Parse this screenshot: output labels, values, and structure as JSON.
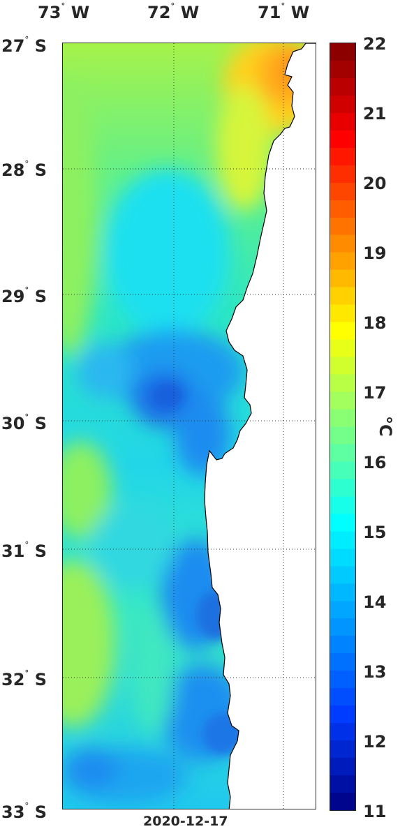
{
  "map": {
    "lon_labels": [
      {
        "deg": "73",
        "sym": "°",
        "dir": "W"
      },
      {
        "deg": "72",
        "sym": "°",
        "dir": "W"
      },
      {
        "deg": "71",
        "sym": "°",
        "dir": "W"
      }
    ],
    "lat_labels": [
      {
        "deg": "27",
        "sym": "°",
        "dir": "S"
      },
      {
        "deg": "28",
        "sym": "°",
        "dir": "S"
      },
      {
        "deg": "29",
        "sym": "°",
        "dir": "S"
      },
      {
        "deg": "30",
        "sym": "°",
        "dir": "S"
      },
      {
        "deg": "31",
        "sym": "°",
        "dir": "S"
      },
      {
        "deg": "32",
        "sym": "°",
        "dir": "S"
      },
      {
        "deg": "33",
        "sym": "°",
        "dir": "S"
      }
    ],
    "date": "2020-12-17",
    "grid": true,
    "land_color": "#ffffff"
  },
  "colorbar": {
    "ticks": [
      "22",
      "21",
      "20",
      "19",
      "18",
      "17",
      "16",
      "15",
      "14",
      "13",
      "12",
      "11"
    ],
    "unit": "°C",
    "min": 11,
    "max": 22,
    "colormap": "jet"
  }
}
